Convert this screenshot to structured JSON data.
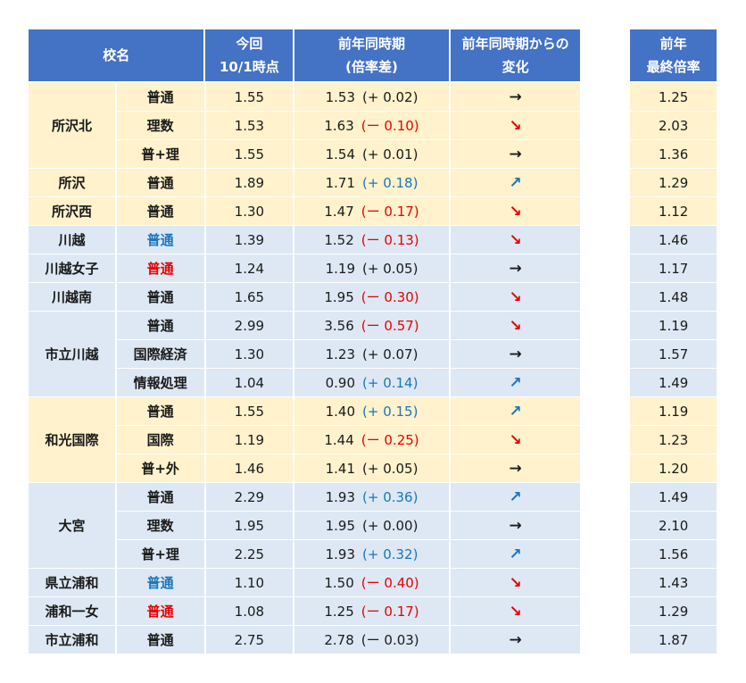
{
  "header": {
    "school": "校名",
    "current_line1": "今回",
    "current_line2": "10/1時点",
    "prev_line1": "前年同時期",
    "prev_line2": "(倍率差)",
    "change_line1": "前年同時期からの",
    "change_line2": "変化",
    "final_line1": "前年",
    "final_line2": "最終倍率"
  },
  "colors": {
    "header_bg": "#4472c4",
    "row_yellow": "#fff2cc",
    "row_blue": "#dde8f4",
    "text_blue": "#1b75bb",
    "text_red": "#e60000"
  },
  "schools": [
    {
      "name": "所沢北",
      "bg": "yellow",
      "color": "",
      "rows": [
        {
          "course": "普通",
          "current": "1.55",
          "prev": "1.53",
          "diff": "(+ 0.02)",
          "trend": "same",
          "final": "1.25"
        },
        {
          "course": "理数",
          "current": "1.53",
          "prev": "1.63",
          "diff": "(ー 0.10)",
          "trend": "down",
          "final": "2.03"
        },
        {
          "course": "普+理",
          "current": "1.55",
          "prev": "1.54",
          "diff": "(+ 0.01)",
          "trend": "same",
          "final": "1.36"
        }
      ]
    },
    {
      "name": "所沢",
      "bg": "yellow",
      "color": "",
      "rows": [
        {
          "course": "普通",
          "current": "1.89",
          "prev": "1.71",
          "diff": "(+ 0.18)",
          "trend": "up",
          "final": "1.29"
        }
      ]
    },
    {
      "name": "所沢西",
      "bg": "yellow",
      "color": "",
      "rows": [
        {
          "course": "普通",
          "current": "1.30",
          "prev": "1.47",
          "diff": "(ー 0.17)",
          "trend": "down",
          "final": "1.12"
        }
      ]
    },
    {
      "name": "川越",
      "bg": "blue",
      "color": "blue",
      "rows": [
        {
          "course": "普通",
          "current": "1.39",
          "prev": "1.52",
          "diff": "(ー 0.13)",
          "trend": "down",
          "final": "1.46"
        }
      ]
    },
    {
      "name": "川越女子",
      "bg": "blue",
      "color": "red",
      "rows": [
        {
          "course": "普通",
          "current": "1.24",
          "prev": "1.19",
          "diff": "(+ 0.05)",
          "trend": "same",
          "final": "1.17"
        }
      ]
    },
    {
      "name": "川越南",
      "bg": "blue",
      "color": "",
      "rows": [
        {
          "course": "普通",
          "current": "1.65",
          "prev": "1.95",
          "diff": "(ー 0.30)",
          "trend": "down",
          "final": "1.48"
        }
      ]
    },
    {
      "name": "市立川越",
      "bg": "blue",
      "color": "",
      "rows": [
        {
          "course": "普通",
          "current": "2.99",
          "prev": "3.56",
          "diff": "(ー 0.57)",
          "trend": "down",
          "final": "1.19"
        },
        {
          "course": "国際経済",
          "current": "1.30",
          "prev": "1.23",
          "diff": "(+ 0.07)",
          "trend": "same",
          "final": "1.57"
        },
        {
          "course": "情報処理",
          "current": "1.04",
          "prev": "0.90",
          "diff": "(+ 0.14)",
          "trend": "up",
          "final": "1.49"
        }
      ]
    },
    {
      "name": "和光国際",
      "bg": "yellow",
      "color": "",
      "rows": [
        {
          "course": "普通",
          "current": "1.55",
          "prev": "1.40",
          "diff": "(+ 0.15)",
          "trend": "up",
          "final": "1.19"
        },
        {
          "course": "国際",
          "current": "1.19",
          "prev": "1.44",
          "diff": "(ー 0.25)",
          "trend": "down",
          "final": "1.23"
        },
        {
          "course": "普+外",
          "current": "1.46",
          "prev": "1.41",
          "diff": "(+ 0.05)",
          "trend": "same",
          "final": "1.20"
        }
      ]
    },
    {
      "name": "大宮",
      "bg": "blue",
      "color": "",
      "rows": [
        {
          "course": "普通",
          "current": "2.29",
          "prev": "1.93",
          "diff": "(+ 0.36)",
          "trend": "up",
          "final": "1.49"
        },
        {
          "course": "理数",
          "current": "1.95",
          "prev": "1.95",
          "diff": "(+ 0.00)",
          "trend": "same",
          "final": "2.10"
        },
        {
          "course": "普+理",
          "current": "2.25",
          "prev": "1.93",
          "diff": "(+ 0.32)",
          "trend": "up",
          "final": "1.56"
        }
      ]
    },
    {
      "name": "県立浦和",
      "bg": "blue",
      "color": "blue",
      "rows": [
        {
          "course": "普通",
          "current": "1.10",
          "prev": "1.50",
          "diff": "(ー 0.40)",
          "trend": "down",
          "final": "1.43"
        }
      ]
    },
    {
      "name": "浦和一女",
      "bg": "blue",
      "color": "red",
      "rows": [
        {
          "course": "普通",
          "current": "1.08",
          "prev": "1.25",
          "diff": "(ー 0.17)",
          "trend": "down",
          "final": "1.29"
        }
      ]
    },
    {
      "name": "市立浦和",
      "bg": "blue",
      "color": "",
      "rows": [
        {
          "course": "普通",
          "current": "2.75",
          "prev": "2.78",
          "diff": "(ー 0.03)",
          "trend": "same",
          "final": "1.87"
        }
      ]
    }
  ],
  "trend_symbols": {
    "same": "→",
    "down": "↘",
    "up": "↗"
  }
}
